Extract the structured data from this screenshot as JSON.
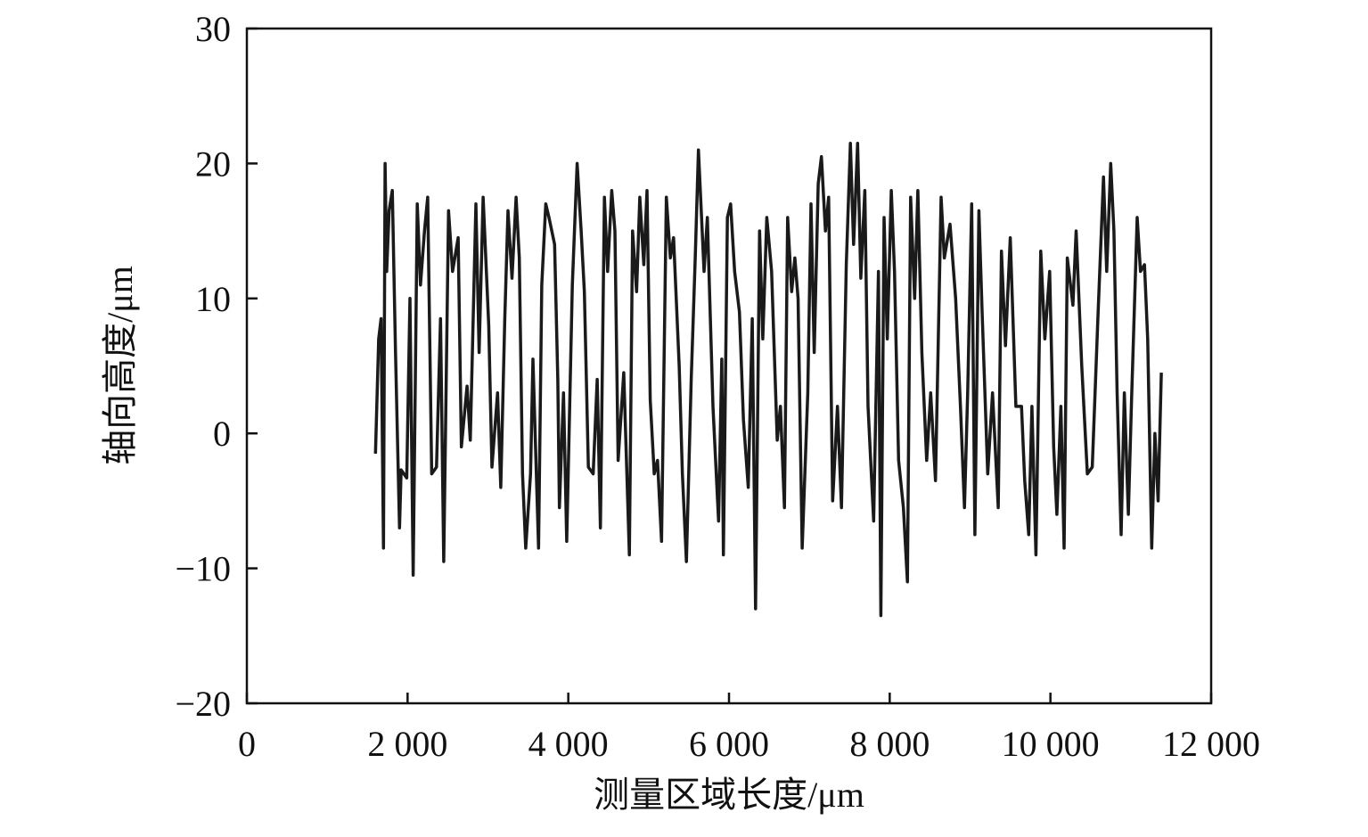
{
  "chart_data": {
    "type": "line",
    "xlabel": "测量区域长度/μm",
    "ylabel": "轴向高度/μm",
    "xlim": [
      0,
      12000
    ],
    "ylim": [
      -20,
      30
    ],
    "xticks": [
      0,
      {
        "value": 2000,
        "label": "2 000"
      },
      {
        "value": 4000,
        "label": "4 000"
      },
      {
        "value": 6000,
        "label": "6 000"
      },
      {
        "value": 8000,
        "label": "8 000"
      },
      {
        "value": 10000,
        "label": "10 000"
      },
      {
        "value": 12000,
        "label": "12 000"
      }
    ],
    "yticks": [
      {
        "value": -20,
        "label": "−20"
      },
      {
        "value": -10,
        "label": "−10"
      },
      0,
      10,
      20,
      30
    ],
    "color": "#1a1a1a",
    "x": [
      1600,
      1640,
      1670,
      1700,
      1720,
      1740,
      1770,
      1810,
      1850,
      1900,
      1920,
      1990,
      2030,
      2070,
      2120,
      2160,
      2210,
      2250,
      2300,
      2360,
      2410,
      2450,
      2510,
      2560,
      2630,
      2670,
      2740,
      2780,
      2850,
      2890,
      2940,
      3010,
      3050,
      3120,
      3160,
      3210,
      3250,
      3300,
      3350,
      3390,
      3430,
      3470,
      3530,
      3560,
      3630,
      3670,
      3720,
      3760,
      3830,
      3870,
      3890,
      3940,
      3980,
      4050,
      4110,
      4160,
      4200,
      4250,
      4310,
      4360,
      4400,
      4450,
      4490,
      4540,
      4580,
      4620,
      4690,
      4760,
      4800,
      4850,
      4890,
      4940,
      4980,
      5020,
      5070,
      5110,
      5160,
      5220,
      5270,
      5310,
      5380,
      5420,
      5470,
      5530,
      5580,
      5620,
      5690,
      5730,
      5800,
      5870,
      5910,
      5930,
      5980,
      6020,
      6070,
      6130,
      6180,
      6240,
      6290,
      6330,
      6380,
      6420,
      6470,
      6530,
      6600,
      6640,
      6690,
      6730,
      6780,
      6820,
      6860,
      6910,
      6980,
      7020,
      7060,
      7110,
      7150,
      7200,
      7240,
      7290,
      7350,
      7400,
      7460,
      7510,
      7550,
      7600,
      7640,
      7690,
      7730,
      7800,
      7860,
      7890,
      7930,
      7970,
      8020,
      8060,
      8110,
      8170,
      8220,
      8260,
      8310,
      8350,
      8400,
      8460,
      8510,
      8570,
      8640,
      8680,
      8750,
      8820,
      8880,
      8930,
      8970,
      9020,
      9060,
      9110,
      9150,
      9220,
      9280,
      9350,
      9390,
      9440,
      9500,
      9570,
      9640,
      9680,
      9730,
      9770,
      9820,
      9880,
      9930,
      9990,
      10040,
      10080,
      10130,
      10170,
      10210,
      10280,
      10320,
      10390,
      10460,
      10520,
      10590,
      10660,
      10700,
      10750,
      10790,
      10830,
      10880,
      10920,
      10970,
      11010,
      11080,
      11120,
      11170,
      11210,
      11260,
      11300,
      11340,
      11380
    ],
    "values": [
      -1.5,
      7,
      8.5,
      -8.5,
      20,
      12,
      16.5,
      18,
      6,
      -7,
      -2.7,
      -3.3,
      10,
      -10.5,
      17,
      11,
      15,
      17.5,
      -3,
      -2.5,
      8.5,
      -9.5,
      16.5,
      12,
      14.5,
      -1,
      3.5,
      -0.5,
      17,
      6,
      17.5,
      8,
      -2.5,
      3,
      -4,
      8.5,
      16.5,
      11.5,
      17.5,
      13,
      -3,
      -8.5,
      -3,
      5.5,
      -8.5,
      11,
      17,
      16,
      14,
      4,
      -5.5,
      3,
      -8,
      11,
      20,
      15,
      10.5,
      -2.5,
      -3,
      4,
      -7,
      17.5,
      12,
      18,
      15,
      -2,
      4.5,
      -9,
      15,
      10.5,
      17.5,
      12.5,
      18,
      2.5,
      -3,
      -2,
      -8,
      17.5,
      13,
      14.5,
      5,
      -3,
      -9.5,
      4,
      13,
      21,
      12,
      16,
      2,
      -6.5,
      5.5,
      -9,
      16,
      17,
      12,
      9,
      1,
      -4,
      8.5,
      -13,
      15,
      7,
      16,
      12,
      -0.5,
      2,
      -5.5,
      16,
      10.5,
      13,
      10,
      -8.5,
      3,
      17,
      6,
      18.5,
      20.5,
      15,
      17.5,
      -5,
      2,
      -5.5,
      12.5,
      21.5,
      14,
      21.5,
      11.5,
      18,
      2,
      -6.5,
      12,
      -13.5,
      16,
      7,
      18,
      12,
      -2,
      -5.5,
      -11,
      17.5,
      10,
      18,
      6,
      -2,
      3,
      -3.5,
      17.5,
      13,
      15.5,
      10,
      2,
      -5.5,
      3,
      17,
      -7.5,
      16.5,
      9,
      -3,
      3,
      -5.5,
      13.5,
      6.5,
      14.5,
      2,
      2,
      -3.5,
      -7.5,
      2,
      -9,
      13.5,
      7,
      12,
      -1,
      -6,
      2,
      -8.5,
      13,
      9.5,
      15,
      5,
      -3,
      -2.5,
      8.5,
      19,
      12,
      20,
      15,
      3,
      -7.5,
      3,
      -6,
      2.5,
      16,
      12,
      12.5,
      7,
      -8.5,
      0,
      -5,
      4.5
    ]
  }
}
